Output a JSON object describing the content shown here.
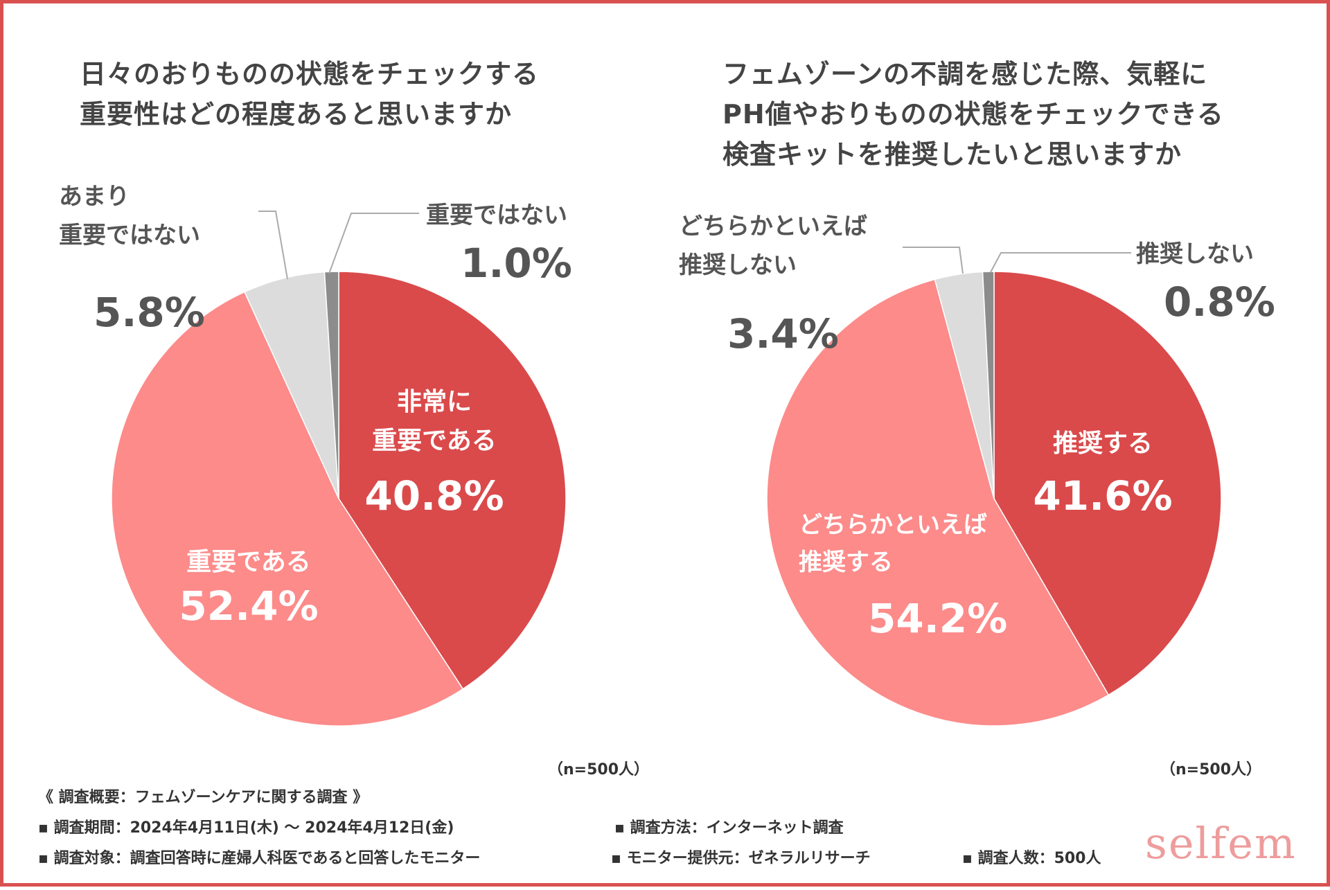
{
  "colors": {
    "border": "#d9514f",
    "very": "#da4a4b",
    "mid": "#fc8b8a",
    "low": "#dcdcdc",
    "none": "#8c8c8c",
    "leader": "#aaaaaa",
    "text_dark": "#555555",
    "text_white": "#ffffff",
    "brand": "#ee9c9c"
  },
  "left_title": [
    "日々のおりものの状態をチェックする",
    "重要性はどの程度あると思いますか"
  ],
  "right_title": [
    "フェムゾーンの不調を感じた際、気軽に",
    "PH値やおりものの状態をチェックできる",
    "検査キットを推奨したいと思いますか"
  ],
  "n_label": "（n=500人）",
  "chart_data": [
    {
      "type": "pie",
      "title": "日々のおりものの状態をチェックする重要性はどの程度あると思いますか",
      "slices": [
        {
          "label": [
            "非常に",
            "重要である"
          ],
          "value": 40.8,
          "display": "40.8%",
          "color": "#da4a4b"
        },
        {
          "label": [
            "重要である"
          ],
          "value": 52.4,
          "display": "52.4%",
          "color": "#fc8b8a"
        },
        {
          "label": [
            "あまり",
            "重要ではない"
          ],
          "value": 5.8,
          "display": "5.8%",
          "color": "#dcdcdc"
        },
        {
          "label": [
            "重要ではない"
          ],
          "value": 1.0,
          "display": "1.0%",
          "color": "#8c8c8c"
        }
      ],
      "note": "（n=500人）"
    },
    {
      "type": "pie",
      "title": "フェムゾーンの不調を感じた際、気軽にPH値やおりものの状態をチェックできる検査キットを推奨したいと思いますか",
      "slices": [
        {
          "label": [
            "推奨する"
          ],
          "value": 41.6,
          "display": "41.6%",
          "color": "#da4a4b"
        },
        {
          "label": [
            "どちらかといえば",
            "推奨する"
          ],
          "value": 54.2,
          "display": "54.2%",
          "color": "#fc8b8a"
        },
        {
          "label": [
            "どちらかといえば",
            "推奨しない"
          ],
          "value": 3.4,
          "display": "3.4%",
          "color": "#dcdcdc"
        },
        {
          "label": [
            "推奨しない"
          ],
          "value": 0.8,
          "display": "0.8%",
          "color": "#8c8c8c"
        }
      ],
      "note": "（n=500人）"
    }
  ],
  "survey": {
    "heading": "《 調査概要：フェムゾーンケアに関する調査 》",
    "period": "▪ 調査期間：2024年4月11日(木) 〜 2024年4月12日(金)",
    "method": "▪ 調査方法：インターネット調査",
    "target": "▪ 調査対象：調査回答時に産婦人科医であると回答したモニター",
    "provider": "▪ モニター提供元：ゼネラルリサーチ",
    "count": "▪ 調査人数：500人"
  },
  "brand": "selfem"
}
